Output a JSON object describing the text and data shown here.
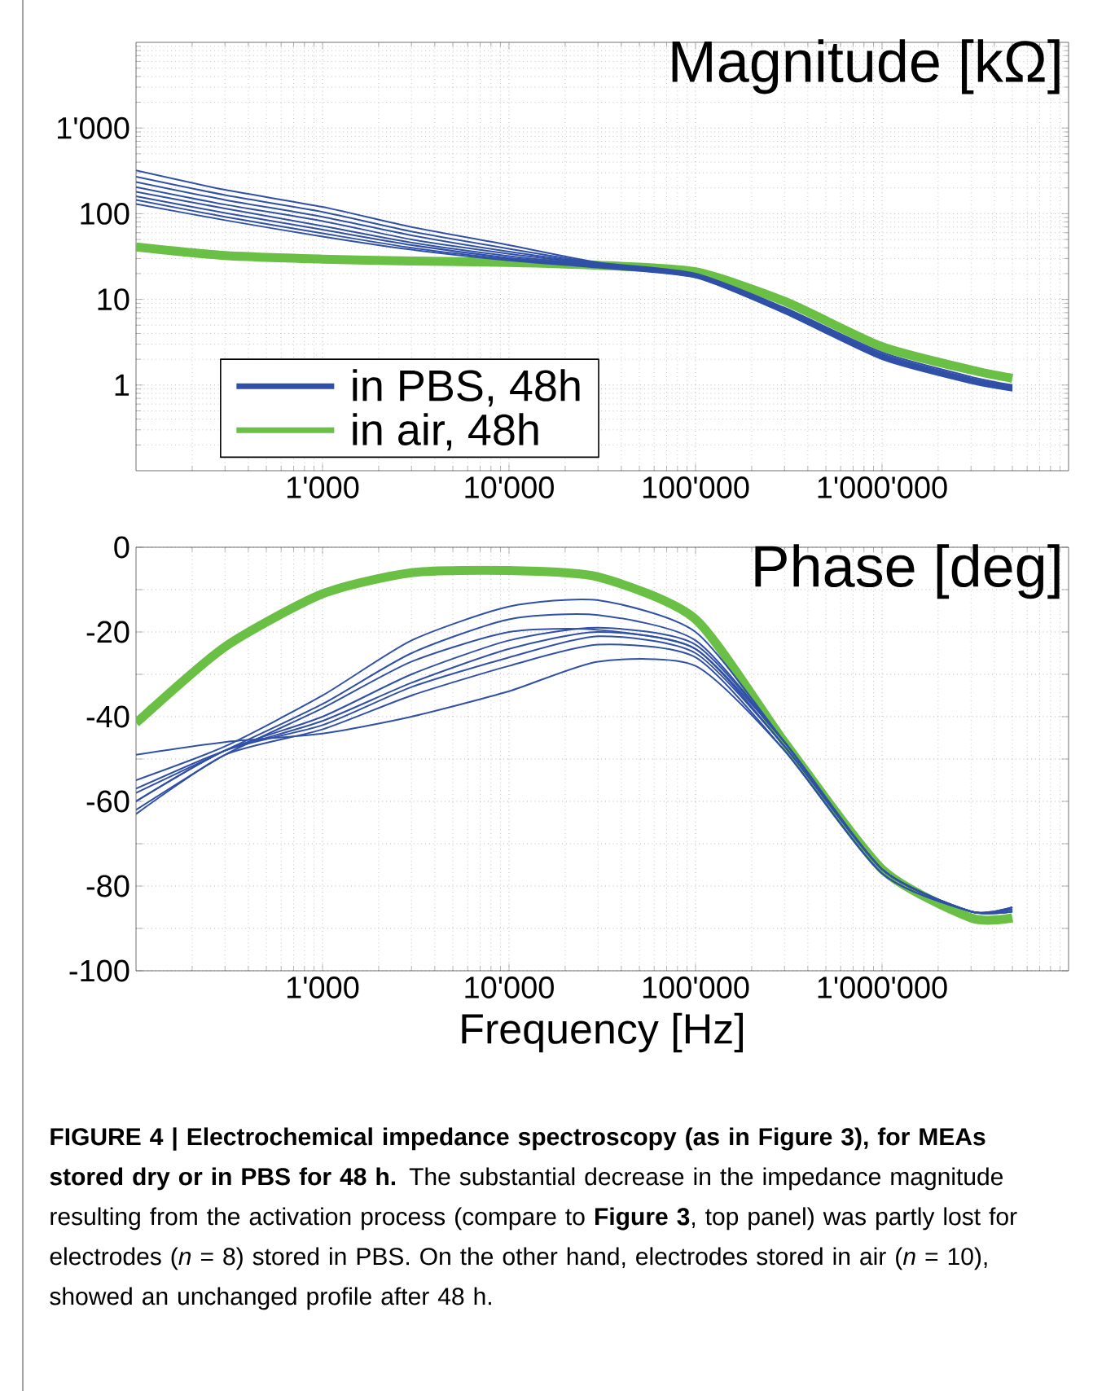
{
  "chart_data": [
    {
      "type": "line",
      "title": "Magnitude [kΩ]",
      "log": "xy",
      "grid": true,
      "legend": "bottom left",
      "x": [
        100,
        300,
        1000,
        3000,
        10000,
        30000,
        100000,
        300000,
        1000000,
        3000000,
        5000000
      ],
      "xlim": [
        100,
        10000000
      ],
      "ylim": [
        0.1,
        10000
      ],
      "xticks": [
        {
          "value": 1000,
          "label": "1'000"
        },
        {
          "value": 10000,
          "label": "10'000"
        },
        {
          "value": 100000,
          "label": "100'000"
        },
        {
          "value": 1000000,
          "label": "1'000'000"
        }
      ],
      "yticks": [
        1,
        10,
        100,
        {
          "value": 1000,
          "label": "1'000"
        }
      ],
      "series": [
        {
          "name": "in PBS, 48h",
          "color": "#3050a8",
          "values": [
            320,
            190,
            120,
            70,
            43,
            27,
            20,
            8,
            2.4,
            1.25,
            1.0
          ]
        },
        {
          "color": "#3050a8",
          "values": [
            270,
            165,
            105,
            62,
            39,
            26.5,
            19.5,
            7.8,
            2.3,
            1.2,
            0.98
          ]
        },
        {
          "color": "#3050a8",
          "values": [
            235,
            145,
            92,
            56,
            36,
            26,
            19,
            7.6,
            2.25,
            1.18,
            0.96
          ]
        },
        {
          "color": "#3050a8",
          "values": [
            205,
            128,
            82,
            50,
            34,
            25.5,
            18.8,
            7.4,
            2.2,
            1.15,
            0.94
          ]
        },
        {
          "color": "#3050a8",
          "values": [
            180,
            115,
            72,
            46,
            32,
            25,
            18.6,
            7.2,
            2.15,
            1.12,
            0.92
          ]
        },
        {
          "color": "#3050a8",
          "values": [
            160,
            102,
            65,
            43,
            30.5,
            24.5,
            18.4,
            7.1,
            2.1,
            1.1,
            0.9
          ]
        },
        {
          "color": "#3050a8",
          "values": [
            145,
            92,
            59,
            40,
            29.5,
            24,
            18.2,
            7,
            2.05,
            1.08,
            0.88
          ]
        },
        {
          "color": "#3050a8",
          "values": [
            130,
            84,
            54,
            38,
            28.5,
            23.5,
            18,
            6.9,
            2.0,
            1.05,
            0.86
          ]
        },
        {
          "name": "in air, 48h",
          "color": "#6abf45",
          "values": [
            41,
            32.5,
            29.5,
            28,
            27,
            25,
            21,
            9.5,
            2.8,
            1.5,
            1.2
          ]
        }
      ]
    },
    {
      "type": "line",
      "title": "Phase [deg]",
      "xlabel": "Frequency [Hz]",
      "log": "x",
      "grid": true,
      "x": [
        100,
        300,
        1000,
        3000,
        10000,
        30000,
        100000,
        300000,
        1000000,
        3000000,
        5000000
      ],
      "xlim": [
        100,
        10000000
      ],
      "ylim": [
        -100,
        0
      ],
      "xticks": [
        {
          "value": 1000,
          "label": "1'000"
        },
        {
          "value": 10000,
          "label": "10'000"
        },
        {
          "value": 100000,
          "label": "100'000"
        },
        {
          "value": 1000000,
          "label": "1'000'000"
        }
      ],
      "yticks": [
        -100,
        {
          "value": -90,
          "label": null
        },
        -80,
        {
          "value": -70,
          "label": null
        },
        -60,
        {
          "value": -50,
          "label": null
        },
        -40,
        {
          "value": -30,
          "label": null
        },
        -20,
        {
          "value": -10,
          "label": null
        },
        0
      ],
      "series": [
        {
          "color": "#3050a8",
          "values": [
            -55,
            -47,
            -35,
            -22,
            -14,
            -12.5,
            -20,
            -46,
            -76,
            -86,
            -85
          ]
        },
        {
          "color": "#3050a8",
          "values": [
            -58,
            -48,
            -37,
            -25,
            -17,
            -16,
            -22,
            -46,
            -76,
            -86,
            -85.5
          ]
        },
        {
          "color": "#3050a8",
          "values": [
            -62,
            -49,
            -38,
            -27,
            -20,
            -19.5,
            -24,
            -46,
            -76,
            -86,
            -85.5
          ]
        },
        {
          "color": "#3050a8",
          "values": [
            -57,
            -48,
            -41,
            -32,
            -24,
            -20,
            -24,
            -47,
            -76,
            -86,
            -85.5
          ]
        },
        {
          "color": "#3050a8",
          "values": [
            -60,
            -48,
            -42,
            -33,
            -26,
            -21,
            -25,
            -47,
            -76,
            -86,
            -86
          ]
        },
        {
          "color": "#3050a8",
          "values": [
            -63,
            -49,
            -43,
            -35,
            -28,
            -23,
            -26,
            -48,
            -77,
            -86,
            -86
          ]
        },
        {
          "color": "#3050a8",
          "values": [
            -49,
            -46,
            -44,
            -40,
            -34,
            -27,
            -28,
            -48,
            -77,
            -86,
            -86
          ]
        },
        {
          "color": "#3050a8",
          "values": [
            -60,
            -48,
            -40,
            -30,
            -22,
            -19,
            -23,
            -46,
            -76,
            -86,
            -85
          ]
        },
        {
          "color": "#6abf45",
          "values": [
            -41.5,
            -23.5,
            -11,
            -6,
            -5.5,
            -7,
            -17,
            -46,
            -76,
            -87.5,
            -87.5
          ]
        }
      ],
      "annotations": [
        "**FIGURE 4 | Electrochemical impedance spectroscopy (as in Figure 3), for MEAs stored dry or in PBS for 48 h.** The substantial decrease in the impedance magnitude resulting from the activation process (compare to **Figure 3**, top panel) was partly lost for electrodes (*n* = 8) stored in PBS. On the other hand, electrodes stored in air (*n* = 10), showed an unchanged profile after 48 h."
      ]
    }
  ]
}
